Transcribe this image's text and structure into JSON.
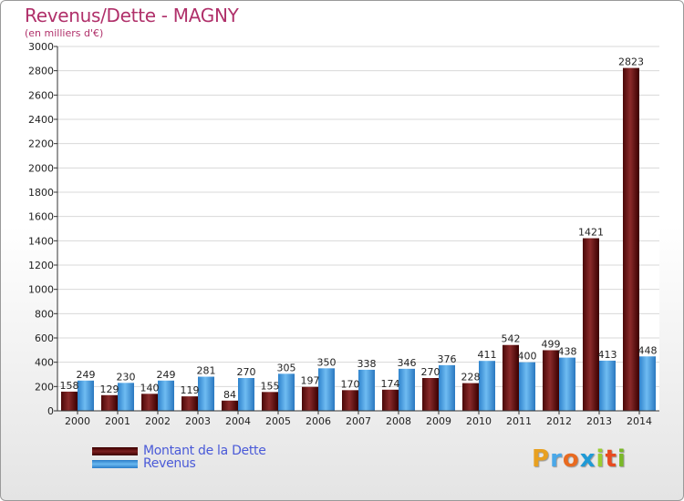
{
  "chart_data": {
    "type": "bar",
    "title": "Revenus/Dette - MAGNY",
    "subtitle": "(en milliers d'€)",
    "xlabel": "",
    "ylabel": "",
    "ylim": [
      0,
      3000
    ],
    "yticks": [
      0,
      200,
      400,
      600,
      800,
      1000,
      1200,
      1400,
      1600,
      1800,
      2000,
      2200,
      2400,
      2600,
      2800,
      3000
    ],
    "grid": true,
    "categories": [
      "2000",
      "2001",
      "2002",
      "2003",
      "2004",
      "2005",
      "2006",
      "2007",
      "2008",
      "2009",
      "2010",
      "2011",
      "2012",
      "2013",
      "2014"
    ],
    "series": [
      {
        "name": "Montant de la Dette",
        "color": "#6e1414",
        "values": [
          158,
          129,
          140,
          119,
          84,
          155,
          197,
          170,
          174,
          270,
          228,
          542,
          499,
          1421,
          2823
        ]
      },
      {
        "name": "Revenus",
        "color": "#4aa0e0",
        "values": [
          249,
          230,
          249,
          281,
          270,
          305,
          350,
          338,
          346,
          376,
          411,
          400,
          438,
          413,
          448
        ]
      }
    ]
  },
  "legend": {
    "debt_label": "Montant de la Dette",
    "revenue_label": "Revenus"
  },
  "logo": {
    "letters": [
      "P",
      "r",
      "o",
      "x",
      "i",
      "t",
      "i"
    ],
    "colors": [
      "#e8a020",
      "#4aa8e8",
      "#e86a20",
      "#1f9ad6",
      "#9acd32",
      "#e84a20",
      "#7ab828"
    ]
  }
}
